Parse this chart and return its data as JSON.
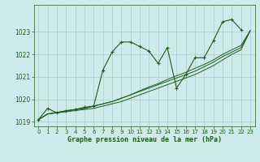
{
  "xlabel": "Graphe pression niveau de la mer (hPa)",
  "background_color": "#ceeaea",
  "grid_color": "#a8d0d0",
  "line_color": "#1e5c1e",
  "ylim": [
    1018.8,
    1024.2
  ],
  "xlim": [
    -0.5,
    23.5
  ],
  "yticks": [
    1019,
    1020,
    1021,
    1022,
    1023
  ],
  "yticklabels": [
    "1019",
    "1020",
    "1021",
    "1022",
    "1023"
  ],
  "xticks": [
    0,
    1,
    2,
    3,
    4,
    5,
    6,
    7,
    8,
    9,
    10,
    11,
    12,
    13,
    14,
    15,
    16,
    17,
    18,
    19,
    20,
    21,
    22,
    23
  ],
  "series_main": [
    1019.1,
    1019.6,
    1019.4,
    1019.5,
    1019.55,
    1019.65,
    1019.7,
    1021.3,
    1022.1,
    1022.55,
    1022.55,
    1022.35,
    1022.15,
    1021.6,
    1022.3,
    1020.5,
    1021.1,
    1021.85,
    1021.85,
    1022.6,
    1023.45,
    1023.55,
    1023.1,
    null
  ],
  "series_trend1": [
    1019.1,
    1019.35,
    1019.4,
    1019.45,
    1019.5,
    1019.55,
    1019.6,
    1019.7,
    1019.8,
    1019.9,
    1020.05,
    1020.2,
    1020.35,
    1020.5,
    1020.65,
    1020.8,
    1020.95,
    1021.1,
    1021.3,
    1021.5,
    1021.75,
    1022.0,
    1022.2,
    1023.05
  ],
  "series_trend2": [
    1019.1,
    1019.35,
    1019.42,
    1019.48,
    1019.55,
    1019.6,
    1019.7,
    1019.8,
    1019.9,
    1020.05,
    1020.2,
    1020.35,
    1020.5,
    1020.65,
    1020.8,
    1020.95,
    1021.1,
    1021.25,
    1021.45,
    1021.65,
    1021.9,
    1022.1,
    1022.3,
    1023.05
  ],
  "series_trend3": [
    1019.1,
    1019.35,
    1019.42,
    1019.48,
    1019.55,
    1019.6,
    1019.7,
    1019.8,
    1019.9,
    1020.05,
    1020.2,
    1020.38,
    1020.55,
    1020.7,
    1020.88,
    1021.05,
    1021.2,
    1021.38,
    1021.55,
    1021.75,
    1022.0,
    1022.2,
    1022.4,
    1023.05
  ]
}
